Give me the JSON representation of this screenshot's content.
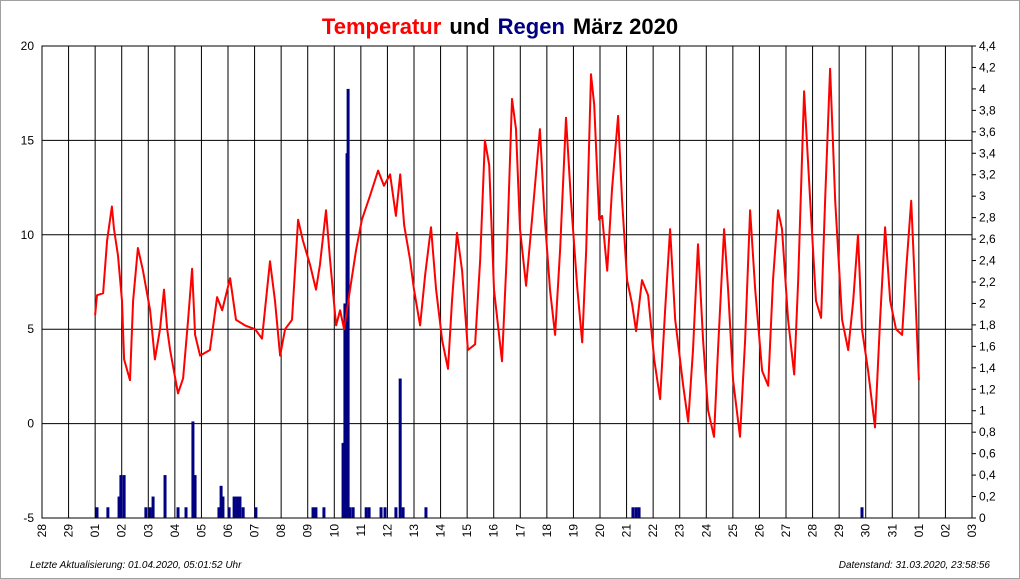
{
  "chart_data": {
    "type": "line",
    "title": [
      {
        "text": "Temperatur",
        "color": "#ff0000"
      },
      {
        "text": "und",
        "color": "#000000"
      },
      {
        "text": "Regen",
        "color": "#000080"
      },
      {
        "text": "März 2020",
        "color": "#000000"
      }
    ],
    "footer_left": "Letzte Aktualisierung: 01.04.2020, 05:01:52 Uhr",
    "footer_right": "Datenstand: 31.03.2020, 23:58:56",
    "grid": true,
    "xlim": [
      0,
      35
    ],
    "xticks": [
      {
        "value": 0,
        "label": "28"
      },
      {
        "value": 1,
        "label": "29"
      },
      {
        "value": 2,
        "label": "01"
      },
      {
        "value": 3,
        "label": "02"
      },
      {
        "value": 4,
        "label": "03"
      },
      {
        "value": 5,
        "label": "04"
      },
      {
        "value": 6,
        "label": "05"
      },
      {
        "value": 7,
        "label": "06"
      },
      {
        "value": 8,
        "label": "07"
      },
      {
        "value": 9,
        "label": "08"
      },
      {
        "value": 10,
        "label": "09"
      },
      {
        "value": 11,
        "label": "10"
      },
      {
        "value": 12,
        "label": "11"
      },
      {
        "value": 13,
        "label": "12"
      },
      {
        "value": 14,
        "label": "13"
      },
      {
        "value": 15,
        "label": "14"
      },
      {
        "value": 16,
        "label": "15"
      },
      {
        "value": 17,
        "label": "16"
      },
      {
        "value": 18,
        "label": "17"
      },
      {
        "value": 19,
        "label": "18"
      },
      {
        "value": 20,
        "label": "19"
      },
      {
        "value": 21,
        "label": "20"
      },
      {
        "value": 22,
        "label": "21"
      },
      {
        "value": 23,
        "label": "22"
      },
      {
        "value": 24,
        "label": "23"
      },
      {
        "value": 25,
        "label": "24"
      },
      {
        "value": 26,
        "label": "25"
      },
      {
        "value": 27,
        "label": "26"
      },
      {
        "value": 28,
        "label": "27"
      },
      {
        "value": 29,
        "label": "28"
      },
      {
        "value": 30,
        "label": "29"
      },
      {
        "value": 31,
        "label": "30"
      },
      {
        "value": 32,
        "label": "31"
      },
      {
        "value": 33,
        "label": "01"
      },
      {
        "value": 34,
        "label": "02"
      },
      {
        "value": 35,
        "label": "03"
      }
    ],
    "ylim": [
      -5,
      20
    ],
    "yticks": [
      -5,
      0,
      5,
      10,
      15,
      20
    ],
    "y2lim": [
      0,
      4.4
    ],
    "y2ticks": [
      0,
      {
        "value": 0.2,
        "label": "0,2"
      },
      {
        "value": 0.4,
        "label": "0,4"
      },
      {
        "value": 0.6,
        "label": "0,6"
      },
      {
        "value": 0.8,
        "label": "0,8"
      },
      1,
      {
        "value": 1.2,
        "label": "1,2"
      },
      {
        "value": 1.4,
        "label": "1,4"
      },
      {
        "value": 1.6,
        "label": "1,6"
      },
      {
        "value": 1.8,
        "label": "1,8"
      },
      2,
      {
        "value": 2.2,
        "label": "2,2"
      },
      {
        "value": 2.4,
        "label": "2,4"
      },
      {
        "value": 2.6,
        "label": "2,6"
      },
      {
        "value": 2.8,
        "label": "2,8"
      },
      3,
      {
        "value": 3.2,
        "label": "3,2"
      },
      {
        "value": 3.4,
        "label": "3,4"
      },
      {
        "value": 3.6,
        "label": "3,6"
      },
      {
        "value": 3.8,
        "label": "3,8"
      },
      4,
      {
        "value": 4.2,
        "label": "4,2"
      },
      {
        "value": 4.4,
        "label": "4,4"
      }
    ],
    "series": [
      {
        "name": "Temperatur",
        "type": "line",
        "color": "#ff0000",
        "x": [
          2.0,
          2.07,
          2.3,
          2.45,
          2.63,
          2.71,
          2.86,
          3.01,
          3.09,
          3.31,
          3.43,
          3.61,
          3.8,
          4.07,
          4.25,
          4.44,
          4.59,
          4.71,
          4.82,
          5.12,
          5.31,
          5.5,
          5.65,
          5.76,
          5.95,
          6.32,
          6.59,
          6.78,
          7.08,
          7.3,
          7.64,
          8.02,
          8.28,
          8.58,
          8.77,
          8.96,
          9.15,
          9.41,
          9.64,
          9.82,
          10.09,
          10.31,
          10.46,
          10.69,
          10.84,
          11.07,
          11.22,
          11.37,
          11.59,
          11.82,
          12.04,
          12.35,
          12.65,
          12.87,
          13.1,
          13.32,
          13.48,
          13.63,
          13.85,
          14.0,
          14.23,
          14.42,
          14.64,
          14.83,
          15.06,
          15.28,
          15.43,
          15.62,
          15.81,
          16.03,
          16.3,
          16.49,
          16.67,
          16.83,
          17.01,
          17.31,
          17.5,
          17.69,
          17.84,
          17.99,
          18.22,
          18.44,
          18.74,
          18.9,
          19.12,
          19.31,
          19.5,
          19.72,
          19.91,
          20.14,
          20.33,
          20.48,
          20.66,
          20.78,
          20.97,
          21.08,
          21.27,
          21.45,
          21.68,
          21.83,
          22.02,
          22.21,
          22.36,
          22.58,
          22.81,
          23.04,
          23.26,
          23.45,
          23.64,
          23.83,
          24.13,
          24.32,
          24.5,
          24.69,
          24.88,
          25.07,
          25.29,
          25.44,
          25.67,
          25.82,
          26.01,
          26.27,
          26.46,
          26.65,
          26.84,
          27.1,
          27.33,
          27.51,
          27.7,
          27.85,
          28.08,
          28.31,
          28.46,
          28.68,
          28.91,
          29.13,
          29.32,
          29.47,
          29.66,
          29.85,
          30.11,
          30.34,
          30.53,
          30.71,
          30.86,
          31.09,
          31.35,
          31.54,
          31.73,
          31.92,
          32.14,
          32.37,
          32.52,
          32.71,
          32.86,
          33.0
        ],
        "values": [
          5.75,
          6.8,
          6.9,
          9.7,
          11.5,
          10.3,
          8.9,
          6.5,
          3.4,
          2.3,
          6.5,
          9.3,
          8.1,
          6.0,
          3.4,
          5.0,
          7.1,
          5.0,
          3.9,
          1.6,
          2.4,
          5.5,
          8.2,
          4.7,
          3.6,
          3.9,
          6.7,
          6.0,
          7.7,
          5.5,
          5.2,
          5.0,
          4.5,
          8.6,
          6.5,
          3.6,
          5.0,
          5.5,
          10.8,
          9.7,
          8.4,
          7.1,
          8.4,
          11.3,
          8.7,
          5.2,
          6.0,
          5.0,
          7.1,
          9.2,
          10.8,
          12.1,
          13.4,
          12.6,
          13.2,
          11.0,
          13.2,
          10.5,
          8.7,
          7.1,
          5.2,
          7.9,
          10.4,
          7.1,
          4.4,
          2.9,
          6.5,
          10.1,
          8.1,
          3.9,
          4.2,
          8.7,
          15.0,
          13.7,
          7.1,
          3.3,
          9.2,
          17.2,
          15.6,
          10.3,
          7.3,
          10.8,
          15.6,
          11.3,
          7.1,
          4.7,
          9.2,
          16.2,
          11.8,
          7.3,
          4.3,
          9.2,
          18.5,
          16.9,
          10.8,
          11.0,
          8.1,
          12.4,
          16.3,
          11.8,
          7.6,
          6.3,
          4.9,
          7.6,
          6.8,
          3.4,
          1.3,
          6.0,
          10.3,
          5.5,
          2.0,
          0.1,
          3.9,
          9.5,
          4.4,
          0.7,
          -0.7,
          3.9,
          10.3,
          7.1,
          2.3,
          -0.7,
          4.4,
          11.3,
          7.1,
          2.8,
          2.0,
          7.6,
          11.3,
          10.3,
          5.5,
          2.6,
          7.6,
          17.6,
          11.8,
          6.5,
          5.6,
          11.8,
          18.8,
          11.8,
          5.5,
          3.9,
          6.5,
          10.0,
          5.0,
          2.8,
          -0.2,
          5.5,
          10.4,
          6.5,
          5.0,
          4.7,
          8.1,
          11.8,
          7.1,
          2.3
        ]
      },
      {
        "name": "Regen",
        "type": "bar",
        "axis": "y2",
        "color": "#000080",
        "x": [
          2.07,
          2.48,
          2.9,
          2.97,
          3.09,
          3.91,
          4.07,
          4.18,
          4.63,
          5.12,
          5.42,
          5.68,
          5.76,
          6.66,
          6.74,
          6.81,
          7.04,
          7.23,
          7.34,
          7.45,
          7.57,
          8.05,
          10.2,
          10.31,
          10.61,
          11.33,
          11.4,
          11.48,
          11.52,
          11.59,
          11.71,
          12.2,
          12.31,
          12.76,
          12.91,
          13.32,
          13.48,
          13.59,
          14.45,
          22.24,
          22.36,
          22.47,
          30.86
        ],
        "values": [
          0.1,
          0.1,
          0.2,
          0.4,
          0.4,
          0.1,
          0.1,
          0.2,
          0.4,
          0.1,
          0.1,
          0.9,
          0.4,
          0.1,
          0.3,
          0.2,
          0.1,
          0.2,
          0.2,
          0.2,
          0.1,
          0.1,
          0.1,
          0.1,
          0.1,
          0.7,
          2.0,
          3.4,
          4.0,
          0.1,
          0.1,
          0.1,
          0.1,
          0.1,
          0.1,
          0.1,
          1.3,
          0.1,
          0.1,
          0.1,
          0.1,
          0.1,
          0.1
        ]
      }
    ]
  }
}
